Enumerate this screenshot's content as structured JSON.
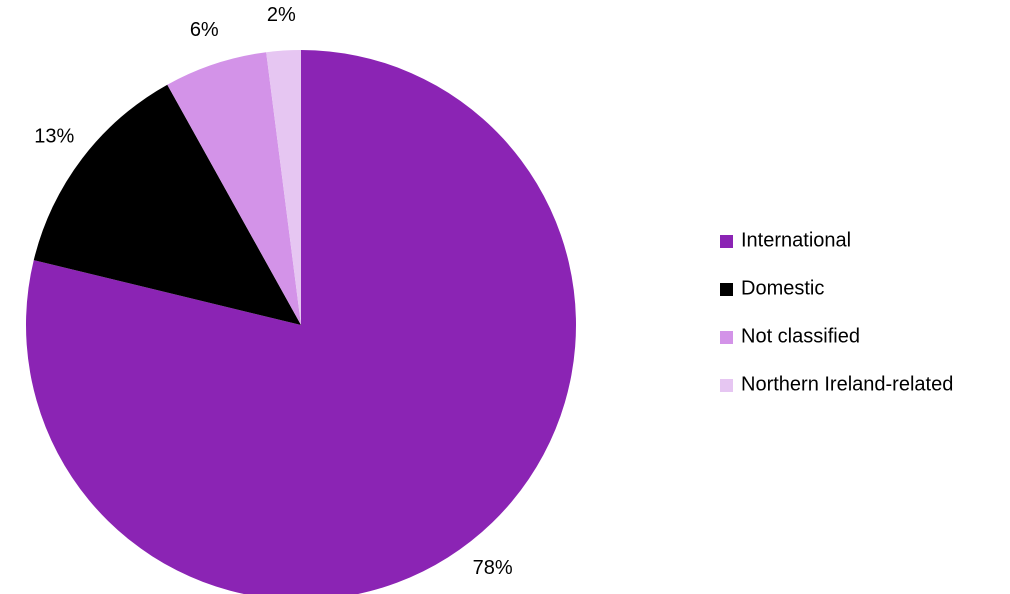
{
  "chart_data": {
    "type": "pie",
    "categories": [
      "International",
      "Domestic",
      "Not classified",
      "Northern Ireland-related"
    ],
    "values": [
      78,
      13,
      6,
      2
    ],
    "value_labels": [
      "78%",
      "13%",
      "6%",
      "2%"
    ],
    "colors": [
      "#8b24b4",
      "#000000",
      "#d393e8",
      "#e6c6f2"
    ],
    "legend": "right"
  }
}
